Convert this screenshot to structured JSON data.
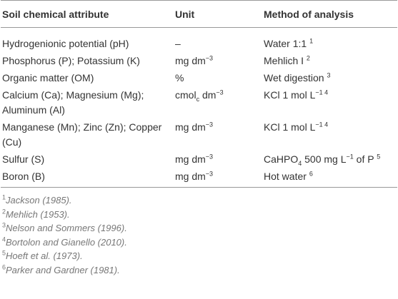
{
  "table": {
    "header": [
      "Soil chemical attribute",
      "Unit",
      "Method of analysis"
    ],
    "rows": [
      [
        [
          {
            "text": "Hydrogenionic potential (pH)"
          }
        ],
        [
          {
            "text": "–"
          }
        ],
        [
          {
            "text": "Water 1:1 "
          },
          {
            "text": "1",
            "pos": "sup"
          }
        ]
      ],
      [
        [
          {
            "text": "Phosphorus (P); Potassium (K)"
          }
        ],
        [
          {
            "text": "mg dm"
          },
          {
            "text": "−3",
            "pos": "sup"
          }
        ],
        [
          {
            "text": "Mehlich I "
          },
          {
            "text": "2",
            "pos": "sup"
          }
        ]
      ],
      [
        [
          {
            "text": "Organic matter (OM)"
          }
        ],
        [
          {
            "text": "%"
          }
        ],
        [
          {
            "text": "Wet digestion "
          },
          {
            "text": "3",
            "pos": "sup"
          }
        ]
      ],
      [
        [
          {
            "text": "Calcium (Ca); Magnesium (Mg); Aluminum (Al)"
          }
        ],
        [
          {
            "text": "cmol"
          },
          {
            "text": "c",
            "pos": "sub"
          },
          {
            "text": " dm"
          },
          {
            "text": "−3",
            "pos": "sup"
          }
        ],
        [
          {
            "text": "KCl 1 mol L"
          },
          {
            "text": "−1 4",
            "pos": "sup"
          }
        ]
      ],
      [
        [
          {
            "text": "Manganese (Mn); Zinc (Zn); Copper (Cu)"
          }
        ],
        [
          {
            "text": "mg dm"
          },
          {
            "text": "−3",
            "pos": "sup"
          }
        ],
        [
          {
            "text": "KCl 1 mol L"
          },
          {
            "text": "−1 4",
            "pos": "sup"
          }
        ]
      ],
      [
        [
          {
            "text": "Sulfur (S)"
          }
        ],
        [
          {
            "text": "mg dm"
          },
          {
            "text": "−3",
            "pos": "sup"
          }
        ],
        [
          {
            "text": "CaHPO"
          },
          {
            "text": "4",
            "pos": "sub"
          },
          {
            "text": " 500 mg L"
          },
          {
            "text": "−1",
            "pos": "sup"
          },
          {
            "text": " of P "
          },
          {
            "text": "5",
            "pos": "sup"
          }
        ]
      ],
      [
        [
          {
            "text": "Boron (B)"
          }
        ],
        [
          {
            "text": "mg dm"
          },
          {
            "text": "−3",
            "pos": "sup"
          }
        ],
        [
          {
            "text": "Hot water "
          },
          {
            "text": "6",
            "pos": "sup"
          }
        ]
      ]
    ],
    "footnotes": [
      {
        "mark": "1",
        "text": "Jackson (1985)."
      },
      {
        "mark": "2",
        "text": "Mehlich (1953)."
      },
      {
        "mark": "3",
        "text": "Nelson and Sommers (1996)."
      },
      {
        "mark": "4",
        "text": "Bortolon and Gianello (2010)."
      },
      {
        "mark": "5",
        "text": "Hoeft et al. (1973)."
      },
      {
        "mark": "6",
        "text": "Parker and Gardner (1981)."
      }
    ]
  }
}
